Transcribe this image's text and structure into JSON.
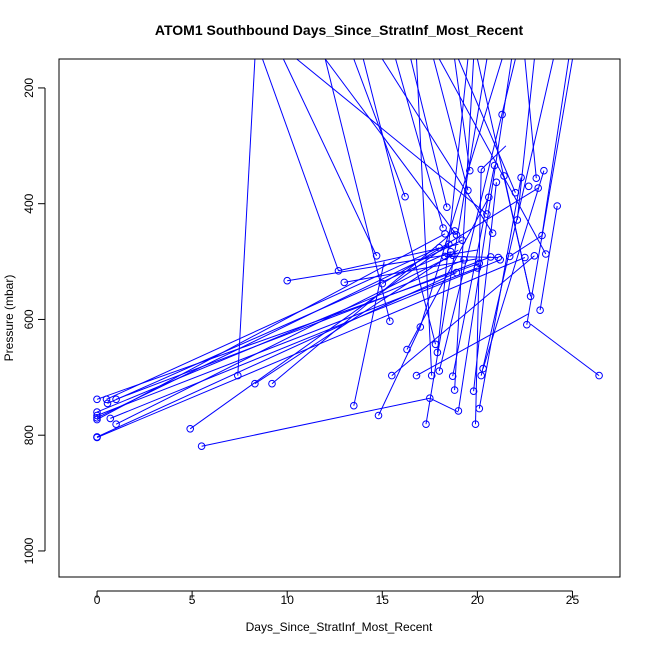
{
  "chart_data": {
    "type": "line",
    "title": "ATOM1 Southbound Days_Since_StratInf_Most_Recent",
    "xlabel": "Days_Since_StratInf_Most_Recent",
    "ylabel": "Pressure (mbar)",
    "xlim": [
      -2,
      27.5
    ],
    "ylim": [
      1045,
      150
    ],
    "y_inverted": true,
    "grid": false,
    "legend": "none",
    "x_ticks": [
      "0",
      "5",
      "10",
      "15",
      "20",
      "25"
    ],
    "y_ticks": [
      "200",
      "400",
      "600",
      "800",
      "1000"
    ],
    "series_color": "#0000ff",
    "marker": "open-circle",
    "points": [
      [
        0.0,
        738
      ],
      [
        0.0,
        760
      ],
      [
        0.0,
        766
      ],
      [
        0.0,
        770
      ],
      [
        0.0,
        773
      ],
      [
        0.0,
        803
      ],
      [
        0.0,
        804
      ],
      [
        0.5,
        738
      ],
      [
        0.55,
        745
      ],
      [
        0.7,
        771
      ],
      [
        1.0,
        738
      ],
      [
        1.0,
        781
      ],
      [
        4.9,
        789
      ],
      [
        5.5,
        819
      ],
      [
        7.4,
        697
      ],
      [
        8.3,
        711
      ],
      [
        9.2,
        711
      ],
      [
        10.0,
        533
      ],
      [
        12.7,
        516
      ],
      [
        13.0,
        536
      ],
      [
        13.5,
        749
      ],
      [
        14.7,
        490
      ],
      [
        14.8,
        766
      ],
      [
        15.0,
        538
      ],
      [
        15.4,
        603
      ],
      [
        15.5,
        697
      ],
      [
        16.2,
        388
      ],
      [
        16.3,
        652
      ],
      [
        16.8,
        697
      ],
      [
        17.0,
        613
      ],
      [
        17.3,
        781
      ],
      [
        17.5,
        736
      ],
      [
        17.6,
        697
      ],
      [
        17.8,
        643
      ],
      [
        17.9,
        657
      ],
      [
        18.0,
        476
      ],
      [
        18.0,
        689
      ],
      [
        18.2,
        442
      ],
      [
        18.3,
        452
      ],
      [
        18.3,
        491
      ],
      [
        18.4,
        406
      ],
      [
        18.5,
        470
      ],
      [
        18.6,
        483
      ],
      [
        18.7,
        489
      ],
      [
        18.7,
        698
      ],
      [
        18.8,
        447
      ],
      [
        18.8,
        722
      ],
      [
        18.9,
        454
      ],
      [
        18.9,
        519
      ],
      [
        19.0,
        758
      ],
      [
        19.2,
        463
      ],
      [
        19.3,
        497
      ],
      [
        19.5,
        377
      ],
      [
        19.6,
        343
      ],
      [
        19.8,
        724
      ],
      [
        19.9,
        781
      ],
      [
        20.0,
        511
      ],
      [
        20.1,
        754
      ],
      [
        20.1,
        503
      ],
      [
        20.2,
        341
      ],
      [
        20.2,
        697
      ],
      [
        20.3,
        685
      ],
      [
        20.5,
        418
      ],
      [
        20.6,
        389
      ],
      [
        20.7,
        492
      ],
      [
        20.8,
        451
      ],
      [
        20.9,
        334
      ],
      [
        21.0,
        363
      ],
      [
        21.1,
        493
      ],
      [
        21.2,
        497
      ],
      [
        21.3,
        246
      ],
      [
        21.4,
        352
      ],
      [
        21.7,
        491
      ],
      [
        22.0,
        381
      ],
      [
        22.1,
        428
      ],
      [
        22.3,
        355
      ],
      [
        22.5,
        493
      ],
      [
        22.6,
        609
      ],
      [
        22.7,
        370
      ],
      [
        22.8,
        560
      ],
      [
        23.0,
        490
      ],
      [
        23.1,
        356
      ],
      [
        23.2,
        373
      ],
      [
        23.3,
        584
      ],
      [
        23.4,
        455
      ],
      [
        23.5,
        343
      ],
      [
        23.6,
        487
      ],
      [
        24.2,
        404
      ],
      [
        26.4,
        697
      ]
    ],
    "segments": [
      [
        [
          0.0,
          773
        ],
        [
          18.3,
          452
        ]
      ],
      [
        [
          0.0,
          770
        ],
        [
          19.2,
          463
        ]
      ],
      [
        [
          0.5,
          738
        ],
        [
          18.0,
          476
        ]
      ],
      [
        [
          0.0,
          766
        ],
        [
          20.0,
          511
        ]
      ],
      [
        [
          0.55,
          745
        ],
        [
          18.6,
          483
        ]
      ],
      [
        [
          0.0,
          803
        ],
        [
          18.9,
          519
        ]
      ],
      [
        [
          0.7,
          771
        ],
        [
          21.2,
          497
        ]
      ],
      [
        [
          1.0,
          781
        ],
        [
          18.7,
          489
        ]
      ],
      [
        [
          0.0,
          760
        ],
        [
          19.3,
          497
        ]
      ],
      [
        [
          1.0,
          738
        ],
        [
          20.7,
          492
        ]
      ],
      [
        [
          0.0,
          804
        ],
        [
          22.5,
          493
        ]
      ],
      [
        [
          0.0,
          738
        ],
        [
          20.1,
          503
        ]
      ],
      [
        [
          4.9,
          789
        ],
        [
          18.5,
          470
        ]
      ],
      [
        [
          5.5,
          819
        ],
        [
          17.5,
          736
        ]
      ],
      [
        [
          7.4,
          697
        ],
        [
          8.3,
          150
        ]
      ],
      [
        [
          8.3,
          711
        ],
        [
          19.0,
          480
        ]
      ],
      [
        [
          9.2,
          711
        ],
        [
          18.8,
          447
        ]
      ],
      [
        [
          10.0,
          533
        ],
        [
          20.0,
          480
        ]
      ],
      [
        [
          12.7,
          516
        ],
        [
          8.7,
          150
        ]
      ],
      [
        [
          12.7,
          516
        ],
        [
          19.0,
          470
        ]
      ],
      [
        [
          13.0,
          536
        ],
        [
          20.0,
          495
        ]
      ],
      [
        [
          13.5,
          749
        ],
        [
          15.1,
          500
        ]
      ],
      [
        [
          14.7,
          490
        ],
        [
          9.8,
          150
        ]
      ],
      [
        [
          14.8,
          766
        ],
        [
          17.0,
          613
        ]
      ],
      [
        [
          15.0,
          538
        ],
        [
          23.2,
          373
        ]
      ],
      [
        [
          15.4,
          603
        ],
        [
          12.0,
          150
        ]
      ],
      [
        [
          15.5,
          697
        ],
        [
          23.0,
          490
        ]
      ],
      [
        [
          16.2,
          388
        ],
        [
          13.5,
          150
        ]
      ],
      [
        [
          16.3,
          652
        ],
        [
          20.6,
          389
        ]
      ],
      [
        [
          16.8,
          697
        ],
        [
          22.7,
          590
        ]
      ],
      [
        [
          17.0,
          613
        ],
        [
          21.3,
          150
        ]
      ],
      [
        [
          17.3,
          781
        ],
        [
          20.5,
          150
        ]
      ],
      [
        [
          17.6,
          697
        ],
        [
          16.8,
          150
        ]
      ],
      [
        [
          17.8,
          643
        ],
        [
          14.0,
          150
        ]
      ],
      [
        [
          17.9,
          657
        ],
        [
          19.5,
          150
        ]
      ],
      [
        [
          18.0,
          689
        ],
        [
          22.0,
          150
        ]
      ],
      [
        [
          18.2,
          442
        ],
        [
          15.7,
          150
        ]
      ],
      [
        [
          18.4,
          406
        ],
        [
          16.5,
          150
        ]
      ],
      [
        [
          18.7,
          698
        ],
        [
          20.9,
          334
        ]
      ],
      [
        [
          18.8,
          722
        ],
        [
          19.8,
          150
        ]
      ],
      [
        [
          19.0,
          758
        ],
        [
          21.8,
          150
        ]
      ],
      [
        [
          19.5,
          377
        ],
        [
          17.7,
          150
        ]
      ],
      [
        [
          19.6,
          343
        ],
        [
          18.8,
          150
        ]
      ],
      [
        [
          19.8,
          724
        ],
        [
          21.0,
          363
        ]
      ],
      [
        [
          19.9,
          781
        ],
        [
          20.2,
          341
        ]
      ],
      [
        [
          20.1,
          754
        ],
        [
          22.3,
          355
        ]
      ],
      [
        [
          20.2,
          697
        ],
        [
          24.0,
          150
        ]
      ],
      [
        [
          20.3,
          685
        ],
        [
          23.5,
          343
        ]
      ],
      [
        [
          20.5,
          418
        ],
        [
          10.5,
          150
        ]
      ],
      [
        [
          20.8,
          451
        ],
        [
          15.0,
          150
        ]
      ],
      [
        [
          21.4,
          352
        ],
        [
          22.8,
          560
        ]
      ],
      [
        [
          22.0,
          381
        ],
        [
          19.0,
          150
        ]
      ],
      [
        [
          22.1,
          428
        ],
        [
          23.0,
          150
        ]
      ],
      [
        [
          22.6,
          609
        ],
        [
          25.0,
          150
        ]
      ],
      [
        [
          22.8,
          560
        ],
        [
          20.0,
          150
        ]
      ],
      [
        [
          23.3,
          584
        ],
        [
          24.2,
          404
        ]
      ],
      [
        [
          23.4,
          455
        ],
        [
          24.8,
          150
        ]
      ],
      [
        [
          23.6,
          487
        ],
        [
          18.0,
          150
        ]
      ],
      [
        [
          23.1,
          356
        ],
        [
          22.5,
          150
        ]
      ],
      [
        [
          26.4,
          697
        ],
        [
          22.8,
          608
        ]
      ],
      [
        [
          17.5,
          736
        ],
        [
          19.0,
          760
        ]
      ],
      [
        [
          18.3,
          491
        ],
        [
          21.1,
          493
        ]
      ],
      [
        [
          21.7,
          491
        ],
        [
          23.4,
          455
        ]
      ],
      [
        [
          12.0,
          150
        ],
        [
          18.9,
          454
        ]
      ],
      [
        [
          20.2,
          341
        ],
        [
          21.5,
          300
        ]
      ]
    ]
  }
}
